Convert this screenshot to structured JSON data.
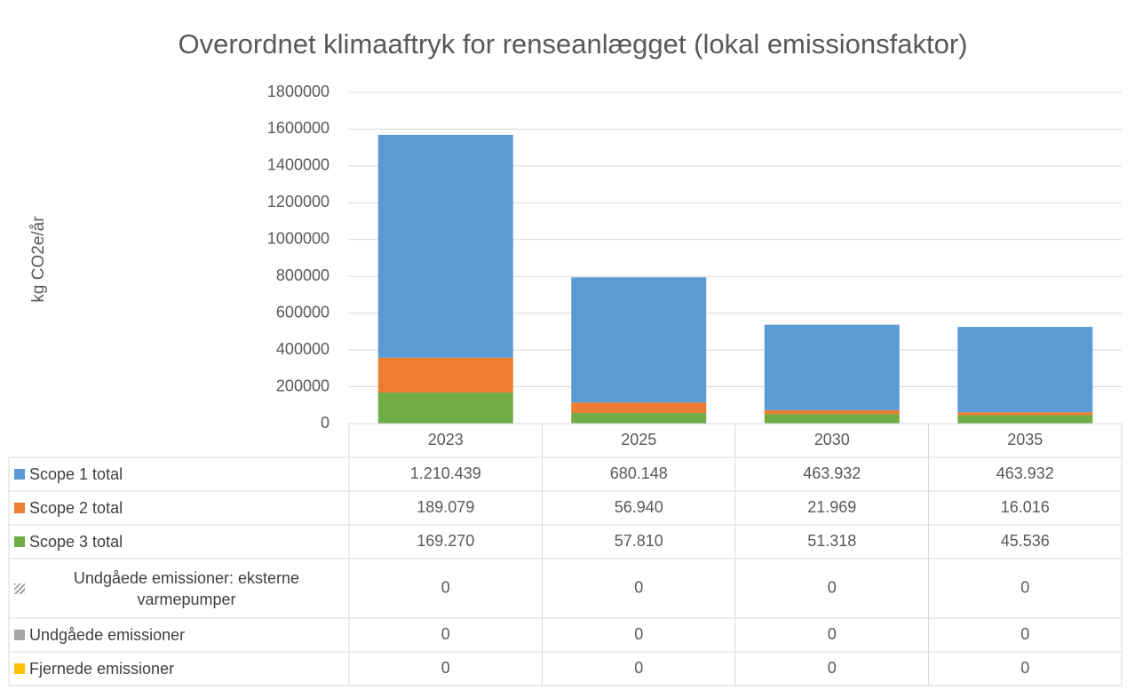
{
  "chart_data": {
    "type": "bar",
    "stacked": true,
    "title": "Overordnet klimaaftryk for renseanlægget (lokal emissionsfaktor)",
    "y_label": "kg CO2e/år",
    "categories": [
      "2023",
      "2025",
      "2030",
      "2035"
    ],
    "series": [
      {
        "name": "Scope 1 total",
        "color": "#5b9bd5",
        "values": [
          1210439,
          680148,
          463932,
          463932
        ],
        "value_labels": [
          "1.210.439",
          "680.148",
          "463.932",
          "463.932"
        ]
      },
      {
        "name": "Scope 2 total",
        "color": "#ed7d31",
        "values": [
          189079,
          56940,
          21969,
          16016
        ],
        "value_labels": [
          "189.079",
          "56.940",
          "21.969",
          "16.016"
        ]
      },
      {
        "name": "Scope 3 total",
        "color": "#70ad47",
        "values": [
          169270,
          57810,
          51318,
          45536
        ],
        "value_labels": [
          "169.270",
          "57.810",
          "51.318",
          "45.536"
        ]
      },
      {
        "name": "Undgåede emissioner: eksterne varmepumper",
        "color": "#a5a5a5",
        "hatch": true,
        "values": [
          0,
          0,
          0,
          0
        ]
      },
      {
        "name": "Undgåede emissioner",
        "color": "#a5a5a5",
        "values": [
          0,
          0,
          0,
          0
        ]
      },
      {
        "name": "Fjernede emissioner",
        "color": "#ffc000",
        "values": [
          0,
          0,
          0,
          0
        ]
      }
    ],
    "ylim": [
      0,
      1800000
    ],
    "yticks": [
      0,
      200000,
      400000,
      600000,
      800000,
      1000000,
      1200000,
      1400000,
      1600000,
      1800000
    ],
    "grid": true
  }
}
